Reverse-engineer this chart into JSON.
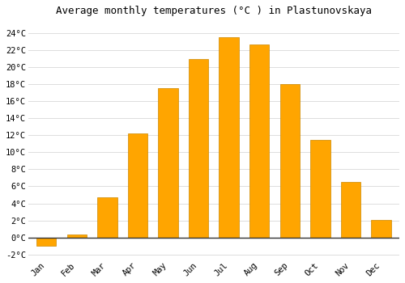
{
  "title": "Average monthly temperatures (°C ) in Plastunovskaya",
  "months": [
    "Jan",
    "Feb",
    "Mar",
    "Apr",
    "May",
    "Jun",
    "Jul",
    "Aug",
    "Sep",
    "Oct",
    "Nov",
    "Dec"
  ],
  "temperatures": [
    -1.0,
    0.3,
    4.7,
    12.2,
    17.5,
    21.0,
    23.5,
    22.7,
    18.0,
    11.5,
    6.5,
    2.1
  ],
  "bar_color": "#FFA500",
  "bar_edge_color": "#CC8800",
  "ylim": [
    -2.5,
    25.5
  ],
  "yticks": [
    -2,
    0,
    2,
    4,
    6,
    8,
    10,
    12,
    14,
    16,
    18,
    20,
    22,
    24
  ],
  "background_color": "#ffffff",
  "plot_bg_color": "#ffffff",
  "grid_color": "#dddddd",
  "title_fontsize": 9,
  "tick_fontsize": 7.5,
  "font_family": "monospace",
  "zero_line_color": "#333333",
  "bar_width": 0.65
}
